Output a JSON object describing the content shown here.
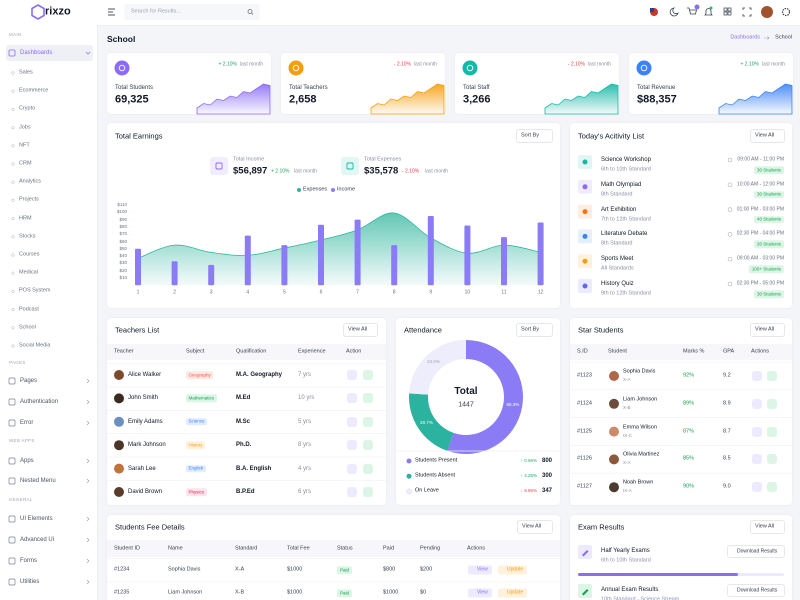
{
  "sidebar": {
    "logo": "rixzo",
    "main_label": "MAIN",
    "dashboards": "Dashboards",
    "submenu": [
      "Sales",
      "Ecommerce",
      "Crypto",
      "Jobs",
      "NFT",
      "CRM",
      "Analytics",
      "Projects",
      "HRM",
      "Stocks",
      "Courses",
      "Medical",
      "POS System",
      "Podcast",
      "School",
      "Social Media"
    ],
    "sections": [
      {
        "label": "PAGES",
        "items": [
          "Pages",
          "Authentication",
          "Error"
        ]
      },
      {
        "label": "WEB APPS",
        "items": [
          "Apps",
          "Nested Menu"
        ]
      },
      {
        "label": "GENERAL",
        "items": [
          "UI Elements",
          "Advanced Ui",
          "Forms",
          "Utilities"
        ]
      }
    ]
  },
  "header": {
    "search_placeholder": "Search for Results..."
  },
  "page": {
    "title": "School",
    "breadcrumb": [
      "Dashboards",
      "School"
    ]
  },
  "stats": [
    {
      "label": "Total Students",
      "value": "69,325",
      "change": "+ 2.10%",
      "note": "last month",
      "color": "#8b6cf6"
    },
    {
      "label": "Total Teachers",
      "value": "2,658",
      "change": "- 2.10%",
      "note": "last month",
      "color": "#f59e0b"
    },
    {
      "label": "Total Staff",
      "value": "3,266",
      "change": "- 2.10%",
      "note": "last month",
      "color": "#14b8a6"
    },
    {
      "label": "Total Revenue",
      "value": "$88,357",
      "change": "+ 2.10%",
      "note": "last month",
      "color": "#3b82f6"
    }
  ],
  "earnings": {
    "title": "Total Earnings",
    "button": "Sort By",
    "summary": [
      {
        "label": "Total Income",
        "value": "$56,897",
        "change": "+ 2.10%",
        "note": "last month",
        "color": "#8b6cf6"
      },
      {
        "label": "Total Expenses",
        "value": "$35,578",
        "change": "- 2.10%",
        "note": "last month",
        "color": "#14b8a6"
      }
    ],
    "chart_data": {
      "type": "bar",
      "categories": [
        "1",
        "2",
        "3",
        "4",
        "5",
        "6",
        "7",
        "8",
        "9",
        "10",
        "11",
        "12"
      ],
      "series": [
        {
          "name": "Expenses",
          "type": "area",
          "color": "#2fb59d",
          "values": [
            37,
            55,
            45,
            41,
            51,
            62,
            76,
            99,
            65,
            44,
            55,
            45
          ]
        },
        {
          "name": "Income",
          "type": "bar",
          "color": "#8b7cf6",
          "values": [
            50,
            33,
            28,
            68,
            55,
            83,
            90,
            55,
            95,
            82,
            66,
            86
          ]
        }
      ],
      "ylim": [
        0,
        110
      ],
      "yticks": [
        {
          "value": 10,
          "label": "$10"
        },
        {
          "value": 20,
          "label": "$20"
        },
        {
          "value": 30,
          "label": "$30"
        },
        {
          "value": 40,
          "label": "$40"
        },
        {
          "value": 50,
          "label": "$50"
        },
        {
          "value": 60,
          "label": "$60"
        },
        {
          "value": 70,
          "label": "$70"
        },
        {
          "value": 80,
          "label": "$80"
        },
        {
          "value": 90,
          "label": "$90"
        },
        {
          "value": 100,
          "label": "$100"
        },
        {
          "value": 110,
          "label": "$110"
        }
      ]
    }
  },
  "activity": {
    "title": "Today's Acitivity List",
    "button": "View All",
    "items": [
      {
        "title": "Science Workshop",
        "subtitle": "6th to 10th Standard",
        "time": "09:00 AM - 11:00 PM",
        "badge": "30 Students"
      },
      {
        "title": "Math Olympiad",
        "subtitle": "8th Standard",
        "time": "10:00 AM - 12:00 PM",
        "badge": "30 Students"
      },
      {
        "title": "Art Exhibition",
        "subtitle": "7th to 12th Standard",
        "time": "01:00 PM - 03:00 PM",
        "badge": "40 Students"
      },
      {
        "title": "Literature Debate",
        "subtitle": "8th Standard",
        "time": "02:30 PM - 04:00 PM",
        "badge": "20 Students"
      },
      {
        "title": "Sports Meet",
        "subtitle": "All Standards",
        "time": "09:00 AM - 03:00 PM",
        "badge": "100+ Students"
      },
      {
        "title": "History Quiz",
        "subtitle": "9th to 12th Standard",
        "time": "02:30 PM - 05:00 PM",
        "badge": "30 Students"
      }
    ]
  },
  "teachers": {
    "title": "Teachers List",
    "button": "View All",
    "columns": [
      "Teacher",
      "Subject",
      "Qualification",
      "Experience",
      "Action"
    ],
    "rows": [
      [
        "Alice Walker",
        "Geography",
        "M.A. Geography",
        "7 yrs"
      ],
      [
        "John Smith",
        "Mathematics",
        "M.Ed",
        "10 yrs"
      ],
      [
        "Emily Adams",
        "Science",
        "M.Sc",
        "5 yrs"
      ],
      [
        "Mark Johnson",
        "History",
        "Ph.D.",
        "8 yrs"
      ],
      [
        "Sarah Lee",
        "English",
        "B.A. English",
        "4 yrs"
      ],
      [
        "David Brown",
        "Physics",
        "B.P.Ed",
        "6 yrs"
      ]
    ]
  },
  "attendance": {
    "title": "Attendance",
    "button": "Sort By",
    "total_label": "Total",
    "total": 1447,
    "chart_data": {
      "type": "donut",
      "categories": [
        "Students Present",
        "Students Absent",
        "On Leave"
      ],
      "values": [
        55.3,
        20.7,
        24.0
      ],
      "value_labels": [
        "55.3%",
        "20.7%",
        "24.0%"
      ],
      "colors": [
        "#8b7cf6",
        "#2bb39f",
        "#eeedfb"
      ]
    },
    "changes": [
      "↑ 0.56%",
      "↑ 4.25%",
      "↓ 9.86%"
    ],
    "counts": [
      800,
      300,
      347
    ]
  },
  "star_students": {
    "title": "Star Students",
    "button": "View All",
    "columns": [
      "S.ID",
      "Student",
      "Marks %",
      "GPA",
      "Actions"
    ],
    "rows": [
      [
        "#1123",
        "Sophia Davis",
        "X-A",
        "92%",
        "9.2"
      ],
      [
        "#1124",
        "Liam Johnson",
        "X-B",
        "89%",
        "8.9"
      ],
      [
        "#1125",
        "Emma Wilson",
        "IX-C",
        "87%",
        "8.7"
      ],
      [
        "#1126",
        "Olivia Martinez",
        "X-A",
        "85%",
        "8.5"
      ],
      [
        "#1127",
        "Noah Brown",
        "IX-A",
        "90%",
        "9.0"
      ]
    ]
  },
  "fees": {
    "title": "Students Fee Details",
    "button": "View All",
    "columns": [
      "Student ID",
      "Name",
      "Standard",
      "Total Fee",
      "Status",
      "Paid",
      "Pending",
      "Actions"
    ],
    "rows": [
      [
        "#1234",
        "Sophia Davis",
        "X-A",
        "$1000",
        "Paid",
        "$800",
        "$200"
      ],
      [
        "#1235",
        "Liam Johnson",
        "X-B",
        "$1000",
        "Paid",
        "$1000",
        "$0"
      ]
    ],
    "actions": [
      "View",
      "Update"
    ]
  },
  "exams": {
    "title": "Exam Results",
    "button": "View All",
    "items": [
      {
        "title": "Half Yearly Exams",
        "subtitle": "6th to 10th Standard",
        "button": "Download Results"
      },
      {
        "title": "Annual Exam Results",
        "subtitle": "10th Standard - Science Stream",
        "button": "Download Results"
      }
    ]
  }
}
